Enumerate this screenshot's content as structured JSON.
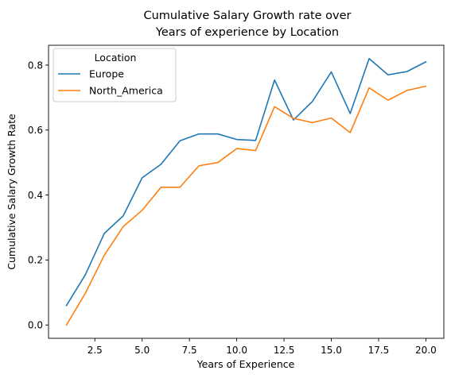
{
  "chart_data": {
    "type": "line",
    "title_lines": [
      "Cumulative Salary Growth rate over",
      "Years of experience by Location"
    ],
    "xlabel": "Years of Experience",
    "ylabel": "Cumulative Salary Growth Rate",
    "xlim": [
      0.05,
      20.95
    ],
    "ylim": [
      -0.041,
      0.861
    ],
    "xticks": [
      2.5,
      5.0,
      7.5,
      10.0,
      12.5,
      15.0,
      17.5,
      20.0
    ],
    "xtick_labels": [
      "2.5",
      "5.0",
      "7.5",
      "10.0",
      "12.5",
      "15.0",
      "17.5",
      "20.0"
    ],
    "yticks": [
      0.0,
      0.2,
      0.4,
      0.6,
      0.8
    ],
    "ytick_labels": [
      "0.0",
      "0.2",
      "0.4",
      "0.6",
      "0.8"
    ],
    "grid": false,
    "legend": {
      "title": "Location",
      "placement": "upper left"
    },
    "x": [
      1,
      2,
      3,
      4,
      5,
      6,
      7,
      8,
      9,
      10,
      11,
      12,
      13,
      14,
      15,
      16,
      17,
      18,
      19,
      20
    ],
    "series": [
      {
        "name": "Europe",
        "color": "#1f77b4",
        "values": [
          0.06,
          0.155,
          0.282,
          0.336,
          0.453,
          0.495,
          0.567,
          0.588,
          0.588,
          0.571,
          0.568,
          0.754,
          0.631,
          0.688,
          0.779,
          0.651,
          0.82,
          0.77,
          0.78,
          0.81
        ]
      },
      {
        "name": "North_America",
        "color": "#ff7f0e",
        "values": [
          0.0,
          0.098,
          0.215,
          0.303,
          0.353,
          0.424,
          0.424,
          0.49,
          0.5,
          0.543,
          0.537,
          0.672,
          0.636,
          0.623,
          0.637,
          0.592,
          0.73,
          0.692,
          0.722,
          0.735
        ]
      }
    ]
  }
}
